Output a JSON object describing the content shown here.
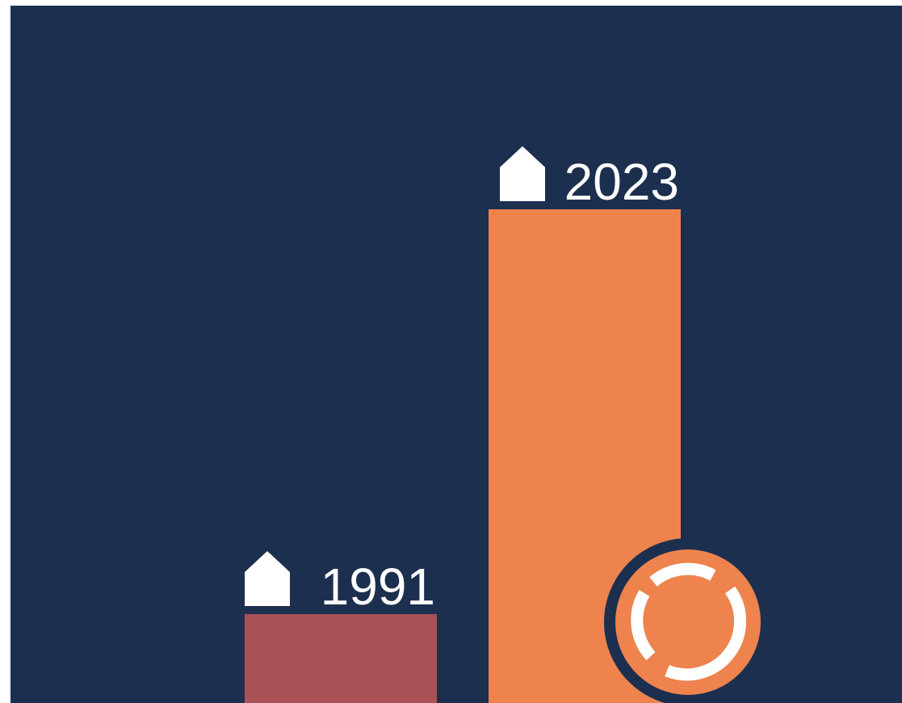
{
  "chart_data": {
    "type": "bar",
    "categories": [
      "1991",
      "2023"
    ],
    "values": [
      18,
      100
    ],
    "colors": [
      "#a85255",
      "#ee834e"
    ],
    "ylim": [
      0,
      100
    ]
  }
}
